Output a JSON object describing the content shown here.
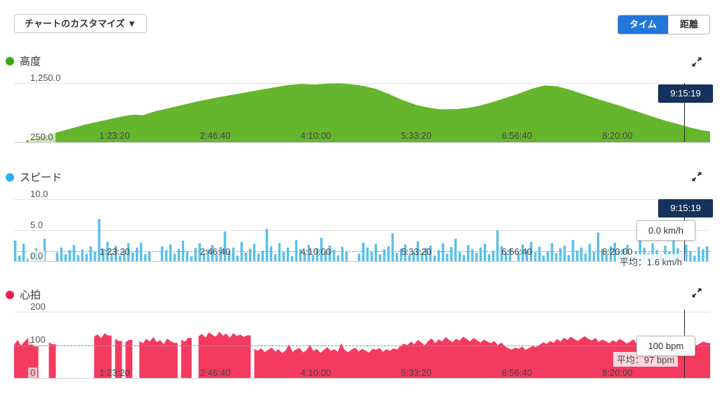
{
  "toolbar": {
    "customize_label": "チャートのカスタマイズ ▼",
    "toggle_options": [
      {
        "label": "タイム",
        "active": true
      },
      {
        "label": "距離",
        "active": false
      }
    ]
  },
  "cursor": {
    "label": "9:15:19",
    "t_seconds": 33319
  },
  "x_ticks": [
    {
      "t": 5000,
      "label": "1:23:20"
    },
    {
      "t": 10000,
      "label": "2:46:40"
    },
    {
      "t": 15000,
      "label": "4:10:00"
    },
    {
      "t": 20000,
      "label": "5:33:20"
    },
    {
      "t": 25000,
      "label": "6:56:40"
    },
    {
      "t": 30000,
      "label": "8:20:00"
    }
  ],
  "x_domain_seconds": [
    0,
    34615
  ],
  "chart_data": [
    {
      "id": "altitude",
      "type": "area",
      "title": "高度",
      "dot_color": "#3fa70f",
      "fill_color": "#65b52d",
      "ylim": [
        250,
        1250
      ],
      "y_tick_labels": [
        "1,250.0",
        "250.0"
      ],
      "points": {
        "t": [
          600,
          1500,
          2500,
          3500,
          4500,
          5000,
          5600,
          6000,
          6400,
          7000,
          8000,
          9000,
          10000,
          11000,
          12000,
          13000,
          13600,
          14300,
          15000,
          15600,
          16200,
          16800,
          17400,
          18000,
          18600,
          19200,
          20000,
          20600,
          21200,
          22000,
          22600,
          23200,
          24000,
          25000,
          25800,
          26400,
          27000,
          27600,
          28400,
          29200,
          30000,
          30800,
          31600,
          32400,
          33000,
          33600,
          34100,
          34615
        ],
        "v": [
          280,
          360,
          450,
          545,
          620,
          660,
          700,
          715,
          705,
          770,
          850,
          930,
          1000,
          1060,
          1120,
          1180,
          1215,
          1235,
          1225,
          1240,
          1245,
          1230,
          1200,
          1150,
          1070,
          980,
          880,
          835,
          805,
          810,
          830,
          870,
          950,
          1060,
          1160,
          1210,
          1195,
          1140,
          1050,
          960,
          880,
          790,
          700,
          610,
          560,
          500,
          460,
          430
        ]
      }
    },
    {
      "id": "speed",
      "type": "bar",
      "title": "スピード",
      "dot_color": "#27b3ee",
      "fill_color": "#41b7e9",
      "ylim": [
        0,
        10
      ],
      "y_tick_labels": [
        "10.0",
        "5.0",
        "0.0"
      ],
      "average": 1.6,
      "average_label": "平均：1.6 km/h",
      "tooltip_value": "0.0 km/h",
      "values": [
        3.3,
        0.9,
        2.8,
        0.4,
        1.2,
        2.1,
        0.8,
        3.6,
        0,
        0,
        1.4,
        2.2,
        1.1,
        1.8,
        2.6,
        1.0,
        1.9,
        1.2,
        2.4,
        1.5,
        6.8,
        2.0,
        3.1,
        1.3,
        2.5,
        0.9,
        1.7,
        2.9,
        1.4,
        2.2,
        3.0,
        1.1,
        1.6,
        0,
        0,
        2.4,
        1.8,
        2.7,
        1.2,
        2.0,
        3.3,
        1.5,
        0.8,
        2.1,
        2.9,
        1.3,
        1.9,
        2.6,
        1.0,
        2.3,
        4.8,
        1.6,
        2.2,
        0.9,
        3.1,
        1.4,
        2.0,
        2.8,
        1.2,
        1.7,
        5.2,
        2.4,
        1.1,
        2.9,
        1.5,
        2.2,
        0.8,
        3.4,
        1.9,
        1.3,
        2.6,
        1.0,
        2.1,
        3.8,
        1.4,
        2.5,
        1.8,
        0.9,
        2.3,
        1.6,
        0,
        0,
        1.2,
        3.0,
        2.2,
        1.5,
        2.8,
        1.1,
        1.9,
        2.4,
        4.5,
        1.3,
        2.0,
        2.7,
        1.0,
        1.6,
        3.2,
        1.4,
        2.1,
        2.5,
        0.9,
        1.8,
        2.9,
        1.2,
        2.3,
        3.6,
        1.5,
        1.0,
        2.6,
        1.9,
        1.3,
        2.2,
        2.8,
        1.1,
        1.7,
        5.0,
        2.4,
        1.4,
        2.0,
        0,
        1.2,
        2.7,
        1.8,
        3.1,
        1.5,
        2.3,
        0.9,
        1.6,
        2.9,
        1.3,
        2.1,
        2.5,
        1.0,
        3.4,
        1.7,
        2.2,
        1.2,
        2.8,
        1.5,
        4.6,
        1.9,
        1.1,
        2.4,
        3.0,
        1.4,
        2.0,
        2.6,
        0.8,
        1.6,
        5.4,
        2.2,
        1.3,
        2.9,
        1.8,
        1.0,
        2.5,
        1.5,
        3.7,
        2.1,
        1.2,
        2.7,
        1.6,
        0.9,
        2.3,
        1.9,
        2.4
      ]
    },
    {
      "id": "heart_rate",
      "type": "area",
      "title": "心拍",
      "dot_color": "#ee1e51",
      "fill_color": "#f43a5f",
      "ylim": [
        0,
        200
      ],
      "y_tick_labels": [
        "200",
        "100",
        "0"
      ],
      "average": 97,
      "average_label": "平均：97 bpm",
      "tooltip_value": "100 bpm",
      "values": [
        100,
        115,
        98,
        110,
        120,
        105,
        95,
        null,
        null,
        null,
        108,
        102,
        null,
        null,
        null,
        null,
        null,
        null,
        null,
        null,
        null,
        null,
        null,
        125,
        132,
        120,
        135,
        128,
        null,
        118,
        112,
        null,
        108,
        115,
        null,
        null,
        112,
        105,
        118,
        110,
        124,
        108,
        115,
        102,
        119,
        111,
        106,
        null,
        116,
        109,
        121,
        null,
        null,
        126,
        133,
        122,
        138,
        130,
        125,
        140,
        128,
        134,
        121,
        136,
        127,
        131,
        124,
        129,
        null,
        88,
        82,
        90,
        78,
        85,
        92,
        80,
        87,
        75,
        83,
        102,
        79,
        86,
        91,
        77,
        84,
        100,
        81,
        88,
        76,
        85,
        93,
        82,
        87,
        79,
        105,
        84,
        78,
        86,
        92,
        80,
        88,
        83,
        76,
        89,
        85,
        91,
        79,
        87,
        82,
        90,
        86,
        96,
        104,
        99,
        110,
        102,
        115,
        108,
        98,
        112,
        120,
        105,
        117,
        110,
        124,
        115,
        108,
        119,
        112,
        125,
        118,
        110,
        121,
        114,
        107,
        116,
        110,
        105,
        112,
        99,
        107,
        96,
        90,
        86,
        92,
        88,
        95,
        85,
        91,
        97,
        93,
        100,
        108,
        103,
        112,
        106,
        118,
        110,
        122,
        115,
        125,
        117,
        112,
        120,
        126,
        118,
        113,
        121,
        109,
        116,
        111,
        105,
        114,
        108,
        118,
        112,
        104,
        110,
        117,
        101,
        109,
        115,
        99,
        107,
        113,
        103,
        111,
        118,
        106,
        100,
        108,
        114,
        102,
        109,
        105,
        112,
        98,
        104,
        110,
        106
      ]
    }
  ]
}
